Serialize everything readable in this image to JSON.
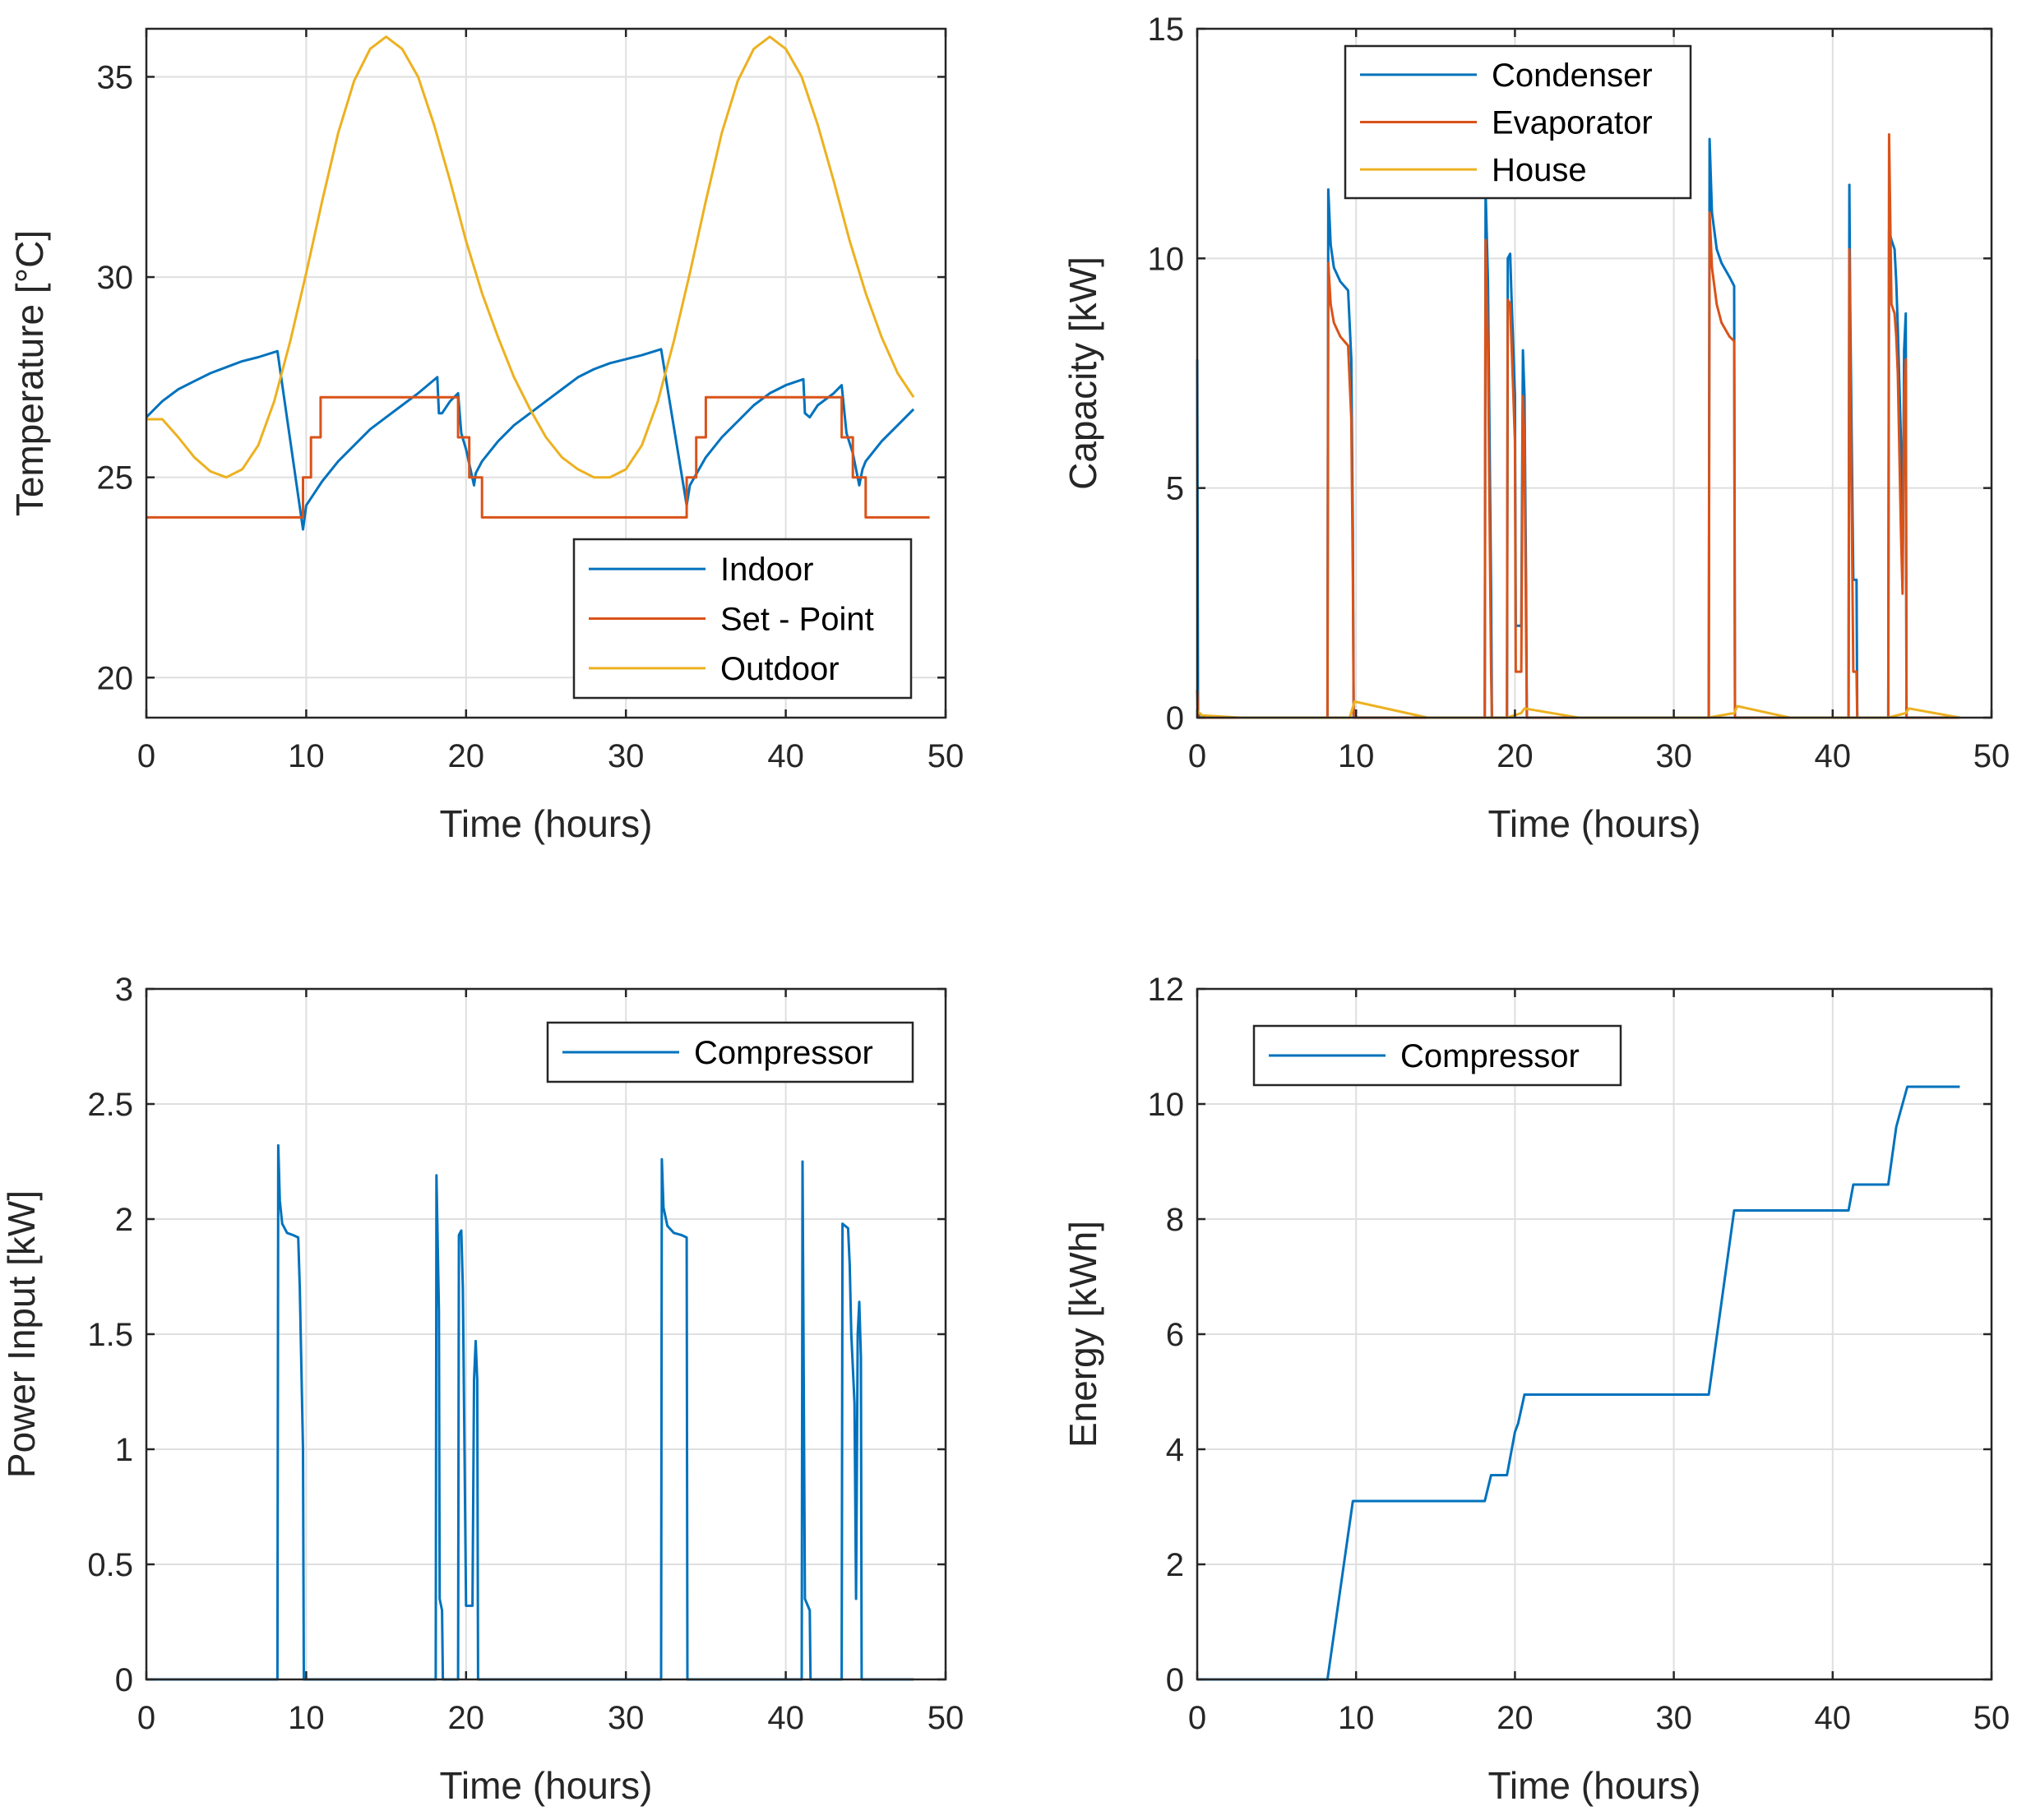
{
  "chart_data": [
    {
      "type": "line",
      "xlabel": "Time (hours)",
      "ylabel": "Temperature [°C]",
      "xlim": [
        0,
        50
      ],
      "ylim": [
        19,
        36.2
      ],
      "xticks": [
        "0",
        "10",
        "20",
        "30",
        "40",
        "50"
      ],
      "yticks": [
        "20",
        "25",
        "30",
        "35"
      ],
      "grid": true,
      "legend_position": "bottom-right",
      "series": [
        {
          "name": "Indoor",
          "color": "#0072BD",
          "x": [
            0,
            1,
            2,
            3,
            4,
            5,
            6,
            7,
            8.2,
            9.8,
            10,
            11,
            12,
            13,
            14,
            15,
            16,
            17,
            18.2,
            18.3,
            18.5,
            19,
            19.5,
            19.7,
            20,
            20.5,
            20.6,
            21,
            22,
            23,
            24,
            25,
            26,
            27,
            28,
            29,
            30,
            31,
            32.2,
            33.8,
            34,
            35,
            36,
            37,
            38,
            39,
            40,
            41.1,
            41.2,
            41.5,
            42,
            43,
            43.5,
            43.8,
            44.2,
            44.6,
            44.8,
            45,
            46,
            47,
            48
          ],
          "y": [
            26.5,
            26.9,
            27.2,
            27.4,
            27.6,
            27.75,
            27.9,
            28.0,
            28.15,
            23.7,
            24.3,
            24.9,
            25.4,
            25.8,
            26.2,
            26.5,
            26.8,
            27.1,
            27.5,
            26.6,
            26.6,
            26.9,
            27.1,
            26.1,
            25.7,
            24.8,
            25.1,
            25.4,
            25.9,
            26.3,
            26.6,
            26.9,
            27.2,
            27.5,
            27.7,
            27.85,
            27.95,
            28.05,
            28.2,
            24.3,
            24.8,
            25.5,
            26.0,
            26.4,
            26.8,
            27.1,
            27.3,
            27.45,
            26.6,
            26.5,
            26.8,
            27.1,
            27.3,
            26.1,
            25.6,
            24.8,
            25.2,
            25.4,
            25.9,
            26.3,
            26.7
          ]
        },
        {
          "name": "Set - Point",
          "color": "#D95319",
          "x": [
            0,
            9.8,
            9.8,
            10.3,
            10.3,
            10.9,
            10.9,
            19.5,
            19.5,
            20.2,
            20.2,
            21,
            21,
            33.8,
            33.8,
            34.4,
            34.4,
            35,
            35,
            43.5,
            43.5,
            44.2,
            44.2,
            45,
            45,
            49
          ],
          "y": [
            24,
            24,
            25,
            25,
            26,
            26,
            27,
            27,
            26,
            26,
            25,
            25,
            24,
            24,
            25,
            25,
            26,
            26,
            27,
            27,
            26,
            26,
            25,
            25,
            24,
            24
          ]
        },
        {
          "name": "Outdoor",
          "color": "#EDB120",
          "x": [
            0,
            1,
            2,
            3,
            4,
            5,
            6,
            7,
            8,
            9,
            10,
            11,
            12,
            13,
            14,
            15,
            16,
            17,
            18,
            19,
            20,
            21,
            22,
            23,
            24,
            25,
            26,
            27,
            28,
            29,
            30,
            31,
            32,
            33,
            34,
            35,
            36,
            37,
            38,
            39,
            40,
            41,
            42,
            43,
            44,
            45,
            46,
            47,
            48
          ],
          "y": [
            26.45,
            26.45,
            26.0,
            25.5,
            25.15,
            25.0,
            25.2,
            25.8,
            26.9,
            28.4,
            30.1,
            31.9,
            33.6,
            34.9,
            35.7,
            36.0,
            35.7,
            35.0,
            33.8,
            32.4,
            30.9,
            29.6,
            28.5,
            27.5,
            26.7,
            26.0,
            25.5,
            25.2,
            25.0,
            25.0,
            25.2,
            25.8,
            26.9,
            28.4,
            30.1,
            31.9,
            33.6,
            34.9,
            35.7,
            36.0,
            35.7,
            35.0,
            33.8,
            32.4,
            30.9,
            29.6,
            28.5,
            27.6,
            27.0
          ]
        }
      ]
    },
    {
      "type": "line",
      "xlabel": "Time (hours)",
      "ylabel": "Capacity [kW]",
      "xlim": [
        0,
        50
      ],
      "ylim": [
        0,
        15
      ],
      "xticks": [
        "0",
        "10",
        "20",
        "30",
        "40",
        "50"
      ],
      "yticks": [
        "0",
        "5",
        "10",
        "15"
      ],
      "grid": true,
      "legend_position": "top-center",
      "series": [
        {
          "name": "Condenser",
          "color": "#0072BD",
          "x": [
            0,
            0.05,
            0.15,
            8.2,
            8.25,
            8.4,
            8.6,
            9,
            9.5,
            9.7,
            9.8,
            9.85,
            18.1,
            18.15,
            18.3,
            18.5,
            18.55,
            19.5,
            19.55,
            19.7,
            19.8,
            19.9,
            20,
            20.05,
            20.4,
            20.5,
            20.6,
            20.7,
            20.75,
            32.2,
            32.25,
            32.4,
            32.7,
            33,
            33.5,
            33.8,
            33.85,
            41.0,
            41.05,
            41.1,
            41.3,
            41.5,
            41.55,
            43.5,
            43.55,
            43.7,
            43.9,
            44.0,
            44.1,
            44.3,
            44.4,
            44.5,
            44.6,
            44.65,
            48
          ],
          "y": [
            7.8,
            0.1,
            0,
            0,
            11.5,
            10.3,
            9.8,
            9.5,
            9.3,
            7.8,
            4.0,
            0,
            0,
            11.5,
            9.5,
            2.8,
            0,
            0,
            10.0,
            10.1,
            9.0,
            8.0,
            7.0,
            2.0,
            2.0,
            8.0,
            7.0,
            3.0,
            0,
            0,
            12.6,
            11.0,
            10.2,
            9.9,
            9.6,
            9.4,
            0,
            0,
            11.6,
            9.0,
            3.0,
            3.0,
            0,
            0,
            10.6,
            10.4,
            10.2,
            9.5,
            8.5,
            6.0,
            3.0,
            8.0,
            8.8,
            0,
            0
          ]
        },
        {
          "name": "Evaporator",
          "color": "#D95319",
          "x": [
            0,
            0.05,
            0.15,
            8.2,
            8.25,
            8.4,
            8.6,
            9,
            9.5,
            9.7,
            9.8,
            9.85,
            18.1,
            18.15,
            18.3,
            18.5,
            18.55,
            19.5,
            19.55,
            19.7,
            19.8,
            19.9,
            20,
            20.05,
            20.4,
            20.5,
            20.6,
            20.7,
            20.75,
            32.2,
            32.25,
            32.4,
            32.7,
            33,
            33.5,
            33.8,
            33.85,
            41.0,
            41.05,
            41.1,
            41.3,
            41.5,
            41.55,
            43.5,
            43.55,
            43.7,
            43.9,
            44.0,
            44.1,
            44.3,
            44.4,
            44.5,
            44.6,
            44.65,
            48
          ],
          "y": [
            0.6,
            0.05,
            0,
            0,
            9.9,
            9.0,
            8.6,
            8.3,
            8.1,
            6.5,
            3.0,
            0,
            0,
            10.4,
            8.0,
            1.0,
            0,
            0,
            9.1,
            9.0,
            8.0,
            7.0,
            6.0,
            1.0,
            1.0,
            7.0,
            6.0,
            2.0,
            0,
            0,
            11.0,
            9.8,
            9.0,
            8.6,
            8.3,
            8.2,
            0,
            0,
            10.2,
            8.0,
            1.0,
            1.0,
            0,
            0,
            12.7,
            9.0,
            8.8,
            8.3,
            7.5,
            4.0,
            2.7,
            7.0,
            7.8,
            0,
            0
          ]
        },
        {
          "name": "House",
          "color": "#EDB120",
          "x": [
            0,
            0.3,
            2.7,
            9.6,
            9.9,
            14.5,
            19.5,
            20.4,
            20.6,
            24,
            32.2,
            33.8,
            34,
            37.3,
            43.5,
            44.6,
            44.8,
            48
          ],
          "y": [
            0.15,
            0.05,
            0,
            0,
            0.35,
            0,
            0,
            0.1,
            0.2,
            0,
            0,
            0.1,
            0.25,
            0,
            0,
            0.1,
            0.2,
            0
          ]
        }
      ]
    },
    {
      "type": "line",
      "xlabel": "Time (hours)",
      "ylabel": "Power Input [kW]",
      "xlim": [
        0,
        50
      ],
      "ylim": [
        0,
        3
      ],
      "xticks": [
        "0",
        "10",
        "20",
        "30",
        "40",
        "50"
      ],
      "yticks": [
        "0",
        "0.5",
        "1",
        "1.5",
        "2",
        "2.5",
        "3"
      ],
      "grid": true,
      "legend_position": "top-right",
      "series": [
        {
          "name": "Compressor",
          "color": "#0072BD",
          "x": [
            0,
            8.2,
            8.25,
            8.35,
            8.5,
            8.8,
            9.2,
            9.5,
            9.6,
            9.8,
            9.85,
            18.1,
            18.15,
            18.3,
            18.35,
            18.5,
            18.55,
            19.5,
            19.55,
            19.7,
            19.8,
            19.9,
            20.0,
            20.05,
            20.4,
            20.5,
            20.6,
            20.7,
            20.75,
            32.2,
            32.25,
            32.35,
            32.6,
            33.0,
            33.5,
            33.8,
            33.85,
            41.0,
            41.05,
            41.1,
            41.2,
            41.5,
            41.55,
            43.5,
            43.55,
            43.9,
            44.0,
            44.1,
            44.3,
            44.4,
            44.5,
            44.6,
            44.7,
            44.75,
            48
          ],
          "y": [
            0,
            0,
            2.32,
            2.08,
            1.98,
            1.94,
            1.93,
            1.92,
            1.7,
            1.0,
            0,
            0,
            2.19,
            1.6,
            0.35,
            0.3,
            0,
            0,
            1.93,
            1.95,
            1.7,
            1.0,
            0.32,
            0.32,
            0.32,
            1.3,
            1.47,
            1.3,
            0,
            0,
            2.26,
            2.05,
            1.97,
            1.94,
            1.93,
            1.92,
            0,
            0,
            2.25,
            1.6,
            0.35,
            0.3,
            0,
            0,
            1.98,
            1.96,
            1.8,
            1.5,
            1.2,
            0.35,
            1.5,
            1.64,
            1.4,
            0,
            0
          ]
        }
      ]
    },
    {
      "type": "line",
      "xlabel": "Time (hours)",
      "ylabel": "Energy [kWh]",
      "xlim": [
        0,
        50
      ],
      "ylim": [
        0,
        12
      ],
      "xticks": [
        "0",
        "10",
        "20",
        "30",
        "40",
        "50"
      ],
      "yticks": [
        "0",
        "2",
        "4",
        "6",
        "8",
        "10",
        "12"
      ],
      "grid": true,
      "legend_position": "top-left",
      "series": [
        {
          "name": "Compressor",
          "color": "#0072BD",
          "x": [
            0,
            8.2,
            9.8,
            18.1,
            18.5,
            19.5,
            20.0,
            20.2,
            20.6,
            32.2,
            33.8,
            41.0,
            41.3,
            43.5,
            44.0,
            44.2,
            44.7,
            48
          ],
          "y": [
            0,
            0,
            3.1,
            3.1,
            3.55,
            3.55,
            4.3,
            4.45,
            4.95,
            4.95,
            8.15,
            8.15,
            8.6,
            8.6,
            9.6,
            9.8,
            10.3,
            10.3
          ]
        }
      ]
    }
  ]
}
